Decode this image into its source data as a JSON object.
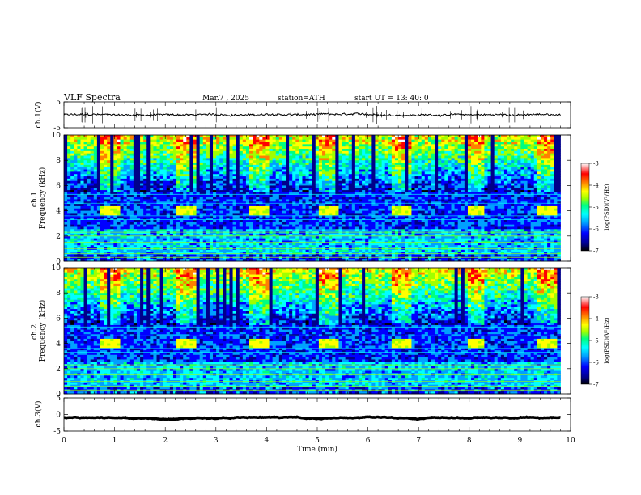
{
  "header": {
    "title": "VLF  Spectra",
    "date": "Mar.7  , 2025",
    "station": "station=ATH",
    "start_ut": "start  UT  =   13: 40: 0"
  },
  "colors": {
    "colormap": [
      "#000000",
      "#00008b",
      "#0000ff",
      "#00a0ff",
      "#00ffff",
      "#00ff80",
      "#a0ff00",
      "#ffff00",
      "#ff8000",
      "#ff0000",
      "#ffffff"
    ],
    "trace": "#000000"
  },
  "chart_data": [
    {
      "type": "line",
      "name": "ch1",
      "ylabel": "ch.1(V)",
      "ylim": [
        -5,
        5
      ],
      "y_ticks": [
        "5",
        "-5"
      ],
      "xlim": [
        0,
        10
      ],
      "description_level": 0,
      "noise_amplitude": 0.35,
      "spikes": true
    },
    {
      "type": "heatmap",
      "name": "ch1-spectrogram",
      "ylabel": "ch.1\nFrequency  (kHz)",
      "ylim": [
        0,
        10
      ],
      "y_ticks": [
        "0",
        "2",
        "4",
        "6",
        "8",
        "10"
      ],
      "xlim": [
        0,
        10
      ],
      "colorbar": {
        "label": "log(PSD)(V²/Hz)",
        "range": [
          -7,
          -3
        ],
        "ticks": [
          "-3",
          "-4",
          "-5",
          "-6",
          "-7"
        ]
      },
      "tone_blocks_min": [
        [
          0.75,
          1.1
        ],
        [
          2.2,
          2.6
        ],
        [
          3.65,
          4.05
        ],
        [
          5.05,
          5.45
        ],
        [
          6.5,
          6.85
        ],
        [
          7.95,
          8.3
        ],
        [
          9.35,
          9.75
        ]
      ],
      "tone_band_khz": [
        3.7,
        4.4
      ],
      "lines_khz": [
        0.3,
        0.6,
        1.0,
        1.5,
        2.0,
        2.3,
        3.3,
        3.6,
        4.6,
        5.3
      ]
    },
    {
      "type": "heatmap",
      "name": "ch2-spectrogram",
      "ylabel": "ch.2\nFrequency  (kHz)",
      "ylim": [
        0,
        10
      ],
      "y_ticks": [
        "0",
        "2",
        "4",
        "6",
        "8",
        "10"
      ],
      "xlim": [
        0,
        10
      ],
      "colorbar": {
        "label": "log(PSD)(V²/Hz)",
        "range": [
          -7,
          -3
        ],
        "ticks": [
          "-3",
          "-4",
          "-5",
          "-6",
          "-7"
        ]
      },
      "tone_blocks_min": [
        [
          0.75,
          1.1
        ],
        [
          2.2,
          2.6
        ],
        [
          3.65,
          4.05
        ],
        [
          5.05,
          5.45
        ],
        [
          6.5,
          6.85
        ],
        [
          7.95,
          8.3
        ],
        [
          9.35,
          9.75
        ]
      ],
      "tone_band_khz": [
        3.6,
        4.3
      ],
      "lines_khz": [
        0.3,
        0.6,
        1.0,
        1.5,
        2.0,
        2.3,
        3.3,
        3.6,
        4.6,
        5.3
      ]
    },
    {
      "type": "line",
      "name": "ch3",
      "ylabel": "ch.3(V)",
      "ylim": [
        -5,
        5
      ],
      "y_ticks": [
        "5",
        "0",
        "-5"
      ],
      "xlim": [
        0,
        10
      ],
      "description_level": -1,
      "noise_amplitude": 0.05,
      "spikes": false
    }
  ],
  "x_axis": {
    "label": "Time  (min)",
    "ticks": [
      "0",
      "1",
      "2",
      "3",
      "4",
      "5",
      "6",
      "7",
      "8",
      "9",
      "10"
    ],
    "xlim": [
      0,
      10
    ]
  }
}
